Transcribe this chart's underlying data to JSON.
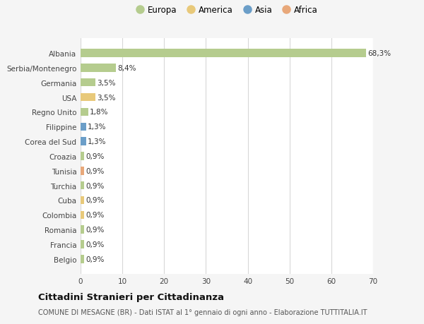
{
  "countries": [
    "Albania",
    "Serbia/Montenegro",
    "Germania",
    "USA",
    "Regno Unito",
    "Filippine",
    "Corea del Sud",
    "Croazia",
    "Tunisia",
    "Turchia",
    "Cuba",
    "Colombia",
    "Romania",
    "Francia",
    "Belgio"
  ],
  "values": [
    68.3,
    8.4,
    3.5,
    3.5,
    1.8,
    1.3,
    1.3,
    0.9,
    0.9,
    0.9,
    0.9,
    0.9,
    0.9,
    0.9,
    0.9
  ],
  "labels": [
    "68,3%",
    "8,4%",
    "3,5%",
    "3,5%",
    "1,8%",
    "1,3%",
    "1,3%",
    "0,9%",
    "0,9%",
    "0,9%",
    "0,9%",
    "0,9%",
    "0,9%",
    "0,9%",
    "0,9%"
  ],
  "colors": [
    "#b5cc8e",
    "#b5cc8e",
    "#b5cc8e",
    "#e8c97a",
    "#b5cc8e",
    "#6b9ec8",
    "#6b9ec8",
    "#b5cc8e",
    "#e8a87a",
    "#b5cc8e",
    "#e8c97a",
    "#e8c97a",
    "#b5cc8e",
    "#b5cc8e",
    "#b5cc8e"
  ],
  "legend_labels": [
    "Europa",
    "America",
    "Asia",
    "Africa"
  ],
  "legend_colors": [
    "#b5cc8e",
    "#e8c97a",
    "#6b9ec8",
    "#e8a87a"
  ],
  "title": "Cittadini Stranieri per Cittadinanza",
  "subtitle": "COMUNE DI MESAGNE (BR) - Dati ISTAT al 1° gennaio di ogni anno - Elaborazione TUTTITALIA.IT",
  "xlim": [
    0,
    70
  ],
  "xticks": [
    0,
    10,
    20,
    30,
    40,
    50,
    60,
    70
  ],
  "bg_color": "#f5f5f5",
  "plot_bg_color": "#ffffff",
  "grid_color": "#d8d8d8"
}
